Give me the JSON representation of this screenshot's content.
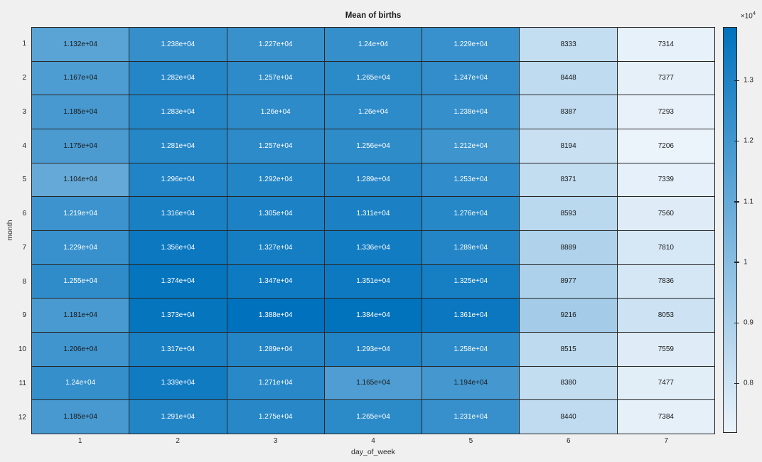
{
  "window": {
    "background": "#f0f0f0"
  },
  "chart_data": {
    "type": "heatmap",
    "title": "Mean of births",
    "xlabel": "day_of_week",
    "ylabel": "month",
    "x_categories": [
      "1",
      "2",
      "3",
      "4",
      "5",
      "6",
      "7"
    ],
    "y_categories": [
      "1",
      "2",
      "3",
      "4",
      "5",
      "6",
      "7",
      "8",
      "9",
      "10",
      "11",
      "12"
    ],
    "cell_labels": [
      [
        "1.132e+04",
        "1.238e+04",
        "1.227e+04",
        "1.24e+04",
        "1.229e+04",
        "8333",
        "7314"
      ],
      [
        "1.167e+04",
        "1.282e+04",
        "1.257e+04",
        "1.265e+04",
        "1.247e+04",
        "8448",
        "7377"
      ],
      [
        "1.185e+04",
        "1.283e+04",
        "1.26e+04",
        "1.26e+04",
        "1.238e+04",
        "8387",
        "7293"
      ],
      [
        "1.175e+04",
        "1.281e+04",
        "1.257e+04",
        "1.256e+04",
        "1.212e+04",
        "8194",
        "7206"
      ],
      [
        "1.104e+04",
        "1.296e+04",
        "1.292e+04",
        "1.289e+04",
        "1.253e+04",
        "8371",
        "7339"
      ],
      [
        "1.219e+04",
        "1.316e+04",
        "1.305e+04",
        "1.311e+04",
        "1.276e+04",
        "8593",
        "7560"
      ],
      [
        "1.229e+04",
        "1.356e+04",
        "1.327e+04",
        "1.336e+04",
        "1.289e+04",
        "8889",
        "7810"
      ],
      [
        "1.255e+04",
        "1.374e+04",
        "1.347e+04",
        "1.351e+04",
        "1.325e+04",
        "8977",
        "7836"
      ],
      [
        "1.181e+04",
        "1.373e+04",
        "1.388e+04",
        "1.384e+04",
        "1.361e+04",
        "9216",
        "8053"
      ],
      [
        "1.206e+04",
        "1.317e+04",
        "1.289e+04",
        "1.293e+04",
        "1.258e+04",
        "8515",
        "7559"
      ],
      [
        "1.24e+04",
        "1.339e+04",
        "1.271e+04",
        "1.165e+04",
        "1.194e+04",
        "8380",
        "7477"
      ],
      [
        "1.185e+04",
        "1.291e+04",
        "1.275e+04",
        "1.265e+04",
        "1.231e+04",
        "8440",
        "7384"
      ]
    ],
    "values": [
      [
        11320,
        12380,
        12270,
        12400,
        12290,
        8333,
        7314
      ],
      [
        11670,
        12820,
        12570,
        12650,
        12470,
        8448,
        7377
      ],
      [
        11850,
        12830,
        12600,
        12600,
        12380,
        8387,
        7293
      ],
      [
        11750,
        12810,
        12570,
        12560,
        12120,
        8194,
        7206
      ],
      [
        11040,
        12960,
        12920,
        12890,
        12530,
        8371,
        7339
      ],
      [
        12190,
        13160,
        13050,
        13110,
        12760,
        8593,
        7560
      ],
      [
        12290,
        13560,
        13270,
        13360,
        12890,
        8889,
        7810
      ],
      [
        12550,
        13740,
        13470,
        13510,
        13250,
        8977,
        7836
      ],
      [
        11810,
        13730,
        13880,
        13840,
        13610,
        9216,
        8053
      ],
      [
        12060,
        13170,
        12890,
        12930,
        12580,
        8515,
        7559
      ],
      [
        12400,
        13390,
        12710,
        11650,
        11940,
        8380,
        7477
      ],
      [
        11850,
        12910,
        12750,
        12650,
        12310,
        8440,
        7384
      ]
    ],
    "color_range": [
      7206,
      13880
    ],
    "colorbar": {
      "exponent_prefix": "×10",
      "exponent": "4",
      "ticks": [
        {
          "label": "1.3",
          "value": 13000
        },
        {
          "label": "1.2",
          "value": 12000
        },
        {
          "label": "1.1",
          "value": 11000
        },
        {
          "label": "1",
          "value": 10000
        },
        {
          "label": "0.9",
          "value": 9000
        },
        {
          "label": "0.8",
          "value": 8000
        }
      ],
      "position": "right"
    },
    "grid": "on",
    "colors": {
      "colormap_min": "#ebf3fb",
      "colormap_max": "#0072bd",
      "grid_line": "#262626",
      "tick_text": "#262626",
      "title_text": "#1a1a1a",
      "cell_text_dark": "#1a1a1a",
      "cell_text_light": "#ffffff",
      "background": "#f0f0f0"
    }
  }
}
